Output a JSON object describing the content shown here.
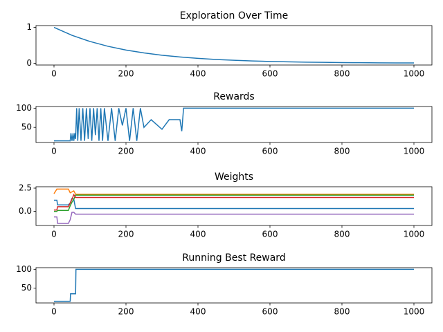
{
  "chart_data": [
    {
      "type": "line",
      "title": "Exploration Over Time",
      "x": [
        0,
        50,
        100,
        150,
        200,
        250,
        300,
        350,
        400,
        450,
        500,
        550,
        600,
        650,
        700,
        750,
        800,
        850,
        900,
        950,
        1000
      ],
      "series": [
        {
          "color": "#1f77b4",
          "values": [
            1,
            0.779,
            0.607,
            0.472,
            0.368,
            0.287,
            0.223,
            0.174,
            0.135,
            0.105,
            0.082,
            0.064,
            0.05,
            0.039,
            0.03,
            0.024,
            0.018,
            0.014,
            0.011,
            0.009,
            0.007
          ]
        }
      ],
      "xlim": [
        -50,
        1050
      ],
      "ylim": [
        -0.05,
        1.05
      ],
      "xticks": [
        0,
        200,
        400,
        600,
        800,
        1000
      ],
      "yticks": [
        0,
        1
      ]
    },
    {
      "type": "line",
      "title": "Rewards",
      "x": [
        0,
        20,
        40,
        45,
        47,
        50,
        53,
        55,
        58,
        60,
        63,
        66,
        70,
        75,
        80,
        85,
        90,
        95,
        100,
        105,
        110,
        115,
        120,
        125,
        130,
        135,
        140,
        150,
        160,
        170,
        180,
        190,
        200,
        210,
        220,
        230,
        240,
        250,
        270,
        300,
        320,
        350,
        355,
        360,
        1000
      ],
      "series": [
        {
          "color": "#1f77b4",
          "values": [
            15,
            15,
            15,
            15,
            35,
            15,
            35,
            15,
            35,
            20,
            100,
            15,
            100,
            15,
            100,
            15,
            100,
            20,
            100,
            15,
            100,
            30,
            100,
            15,
            100,
            15,
            100,
            15,
            100,
            15,
            100,
            55,
            100,
            15,
            100,
            15,
            100,
            50,
            70,
            45,
            70,
            70,
            40,
            100,
            100
          ]
        }
      ],
      "xlim": [
        -50,
        1050
      ],
      "ylim": [
        10.75,
        104.25
      ],
      "xticks": [
        0,
        200,
        400,
        600,
        800,
        1000
      ],
      "yticks": [
        50,
        100
      ]
    },
    {
      "type": "line",
      "title": "Weights",
      "x": [
        0,
        8,
        10,
        40,
        45,
        50,
        55,
        60,
        1000
      ],
      "series": [
        {
          "color": "#1f77b4",
          "values": [
            1.2,
            1.2,
            0.7,
            0.7,
            0.9,
            1.4,
            1.3,
            0.3,
            0.3
          ]
        },
        {
          "color": "#ff7f0e",
          "values": [
            1.9,
            2.4,
            2.4,
            2.4,
            2.0,
            2.1,
            2.2,
            1.85,
            1.85
          ]
        },
        {
          "color": "#2ca02c",
          "values": [
            0,
            0,
            0.1,
            0.1,
            0.6,
            1.0,
            1.3,
            1.75,
            1.75
          ]
        },
        {
          "color": "#d62728",
          "values": [
            0.15,
            0.15,
            0.5,
            0.5,
            0.9,
            1.3,
            1.8,
            1.5,
            1.5
          ]
        },
        {
          "color": "#9467bd",
          "values": [
            -0.6,
            -0.6,
            -1.3,
            -1.3,
            -0.9,
            -0.1,
            -0.1,
            -0.3,
            -0.3
          ]
        }
      ],
      "xlim": [
        -50,
        1050
      ],
      "ylim": [
        -1.52,
        2.65
      ],
      "xticks": [
        0,
        200,
        400,
        600,
        800,
        1000
      ],
      "yticks": [
        {
          "value": 0,
          "label": "0.0"
        },
        {
          "value": 2.5,
          "label": "2.5"
        }
      ]
    },
    {
      "type": "line",
      "title": "Running Best Reward",
      "x": [
        0,
        45,
        46,
        60,
        61,
        1000
      ],
      "series": [
        {
          "color": "#1f77b4",
          "values": [
            15,
            15,
            35,
            35,
            100,
            100
          ]
        }
      ],
      "xlim": [
        -50,
        1050
      ],
      "ylim": [
        10.75,
        104.25
      ],
      "xticks": [
        0,
        200,
        400,
        600,
        800,
        1000
      ],
      "yticks": [
        50,
        100
      ]
    }
  ]
}
